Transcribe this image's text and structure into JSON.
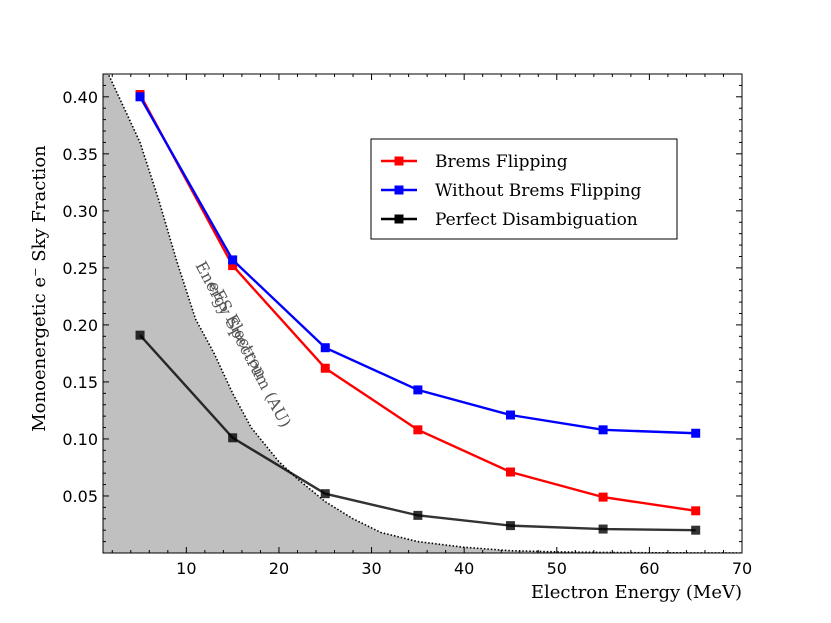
{
  "chart_data": {
    "type": "line",
    "xlabel": "Electron Energy (MeV)",
    "ylabel": "Monoenergetic e⁻ Sky Fraction",
    "xlim": [
      1,
      70
    ],
    "ylim": [
      0.0,
      0.42
    ],
    "xticks": [
      10,
      20,
      30,
      40,
      50,
      60,
      70
    ],
    "yticks": [
      0.05,
      0.1,
      0.15,
      0.2,
      0.25,
      0.3,
      0.35,
      0.4
    ],
    "x": [
      5,
      15,
      25,
      35,
      45,
      55,
      65
    ],
    "series": [
      {
        "name": "Brems Flipping",
        "color": "#ff0000",
        "values": [
          0.402,
          0.252,
          0.162,
          0.108,
          0.071,
          0.049,
          0.037
        ]
      },
      {
        "name": "Without Brems Flipping",
        "color": "#0000ff",
        "values": [
          0.4,
          0.257,
          0.18,
          0.143,
          0.121,
          0.108,
          0.105
        ]
      },
      {
        "name": "Perfect Disambiguation",
        "color": "#000000",
        "values": [
          0.191,
          0.101,
          0.052,
          0.033,
          0.024,
          0.021,
          0.02
        ]
      }
    ],
    "spectrum": {
      "x": [
        1,
        3,
        5,
        7,
        9,
        11,
        13,
        15,
        17,
        20,
        22,
        25,
        28,
        31,
        35,
        40,
        45,
        50,
        55,
        60,
        65,
        70
      ],
      "values": [
        0.43,
        0.395,
        0.36,
        0.31,
        0.255,
        0.205,
        0.175,
        0.14,
        0.11,
        0.08,
        0.065,
        0.045,
        0.03,
        0.018,
        0.01,
        0.005,
        0.002,
        0.001,
        0.0005,
        0.0002,
        0.0001,
        0.0
      ],
      "fill_color": "#c0c0c0"
    },
    "annotation": {
      "line1": "eES Electron",
      "line2": "Energy Spectrum (AU)"
    },
    "legend_position": "upper-right"
  }
}
